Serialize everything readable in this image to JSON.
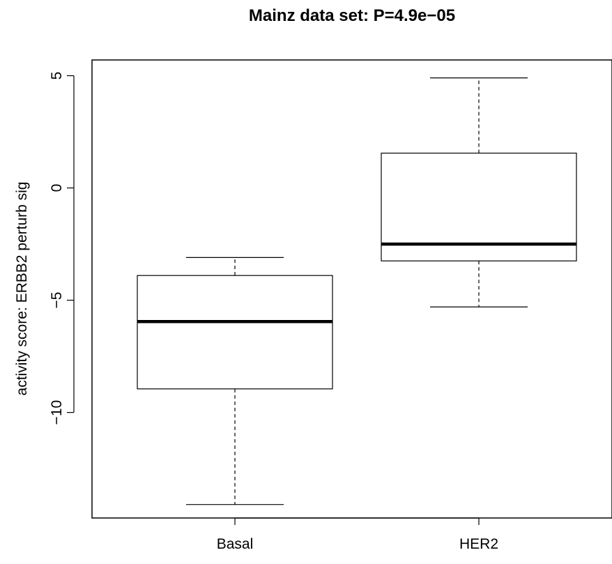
{
  "chart_data": {
    "type": "boxplot",
    "title": "Mainz data set: P=4.9e−05",
    "xlabel": "",
    "ylabel": "activity score: ERBB2 perturb sig",
    "ylim": [
      -14.7,
      5.7
    ],
    "yticks": [
      5,
      0,
      -5,
      -10
    ],
    "ytick_labels": [
      "5",
      "0",
      "−5",
      "−10"
    ],
    "categories": [
      "Basal",
      "HER2"
    ],
    "boxes": [
      {
        "category": "Basal",
        "whisker_low": -14.1,
        "q1": -8.95,
        "median": -5.95,
        "q3": -3.9,
        "whisker_high": -3.1
      },
      {
        "category": "HER2",
        "whisker_low": -5.3,
        "q1": -3.25,
        "median": -2.5,
        "q3": 1.55,
        "whisker_high": 4.9
      }
    ],
    "grid": false
  }
}
